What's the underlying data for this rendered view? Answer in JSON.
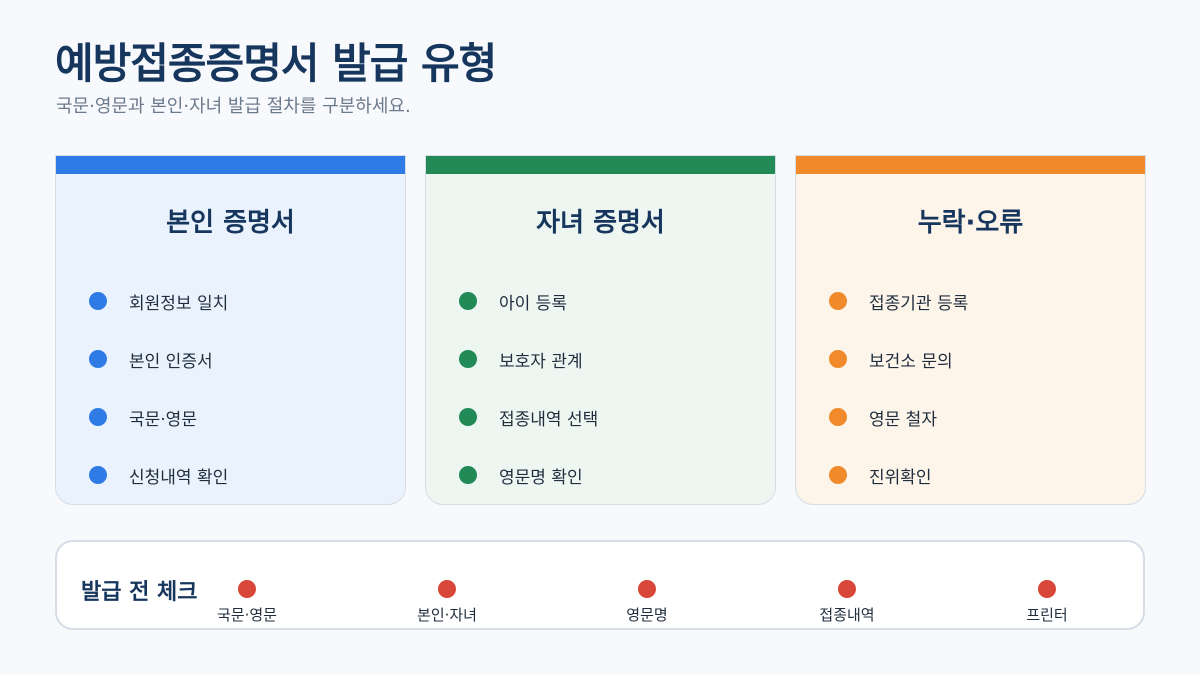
{
  "header": {
    "title": "예방접종증명서 발급 유형",
    "subtitle": "국문·영문과 본인·자녀 발급 절차를 구분하세요."
  },
  "colors": {
    "card1_accent": "#2f7be6",
    "card2_accent": "#218a57",
    "card3_accent": "#f08a2b",
    "check_dot": "#d9473a"
  },
  "cards": [
    {
      "title": "본인 증명서",
      "items": [
        "회원정보 일치",
        "본인 인증서",
        "국문·영문",
        "신청내역 확인"
      ]
    },
    {
      "title": "자녀 증명서",
      "items": [
        "아이 등록",
        "보호자 관계",
        "접종내역 선택",
        "영문명 확인"
      ]
    },
    {
      "title": "누락·오류",
      "items": [
        "접종기관 등록",
        "보건소 문의",
        "영문 철자",
        "진위확인"
      ]
    }
  ],
  "checklist": {
    "title": "발급 전 체크",
    "items": [
      "국문·영문",
      "본인·자녀",
      "영문명",
      "접종내역",
      "프린터"
    ]
  }
}
